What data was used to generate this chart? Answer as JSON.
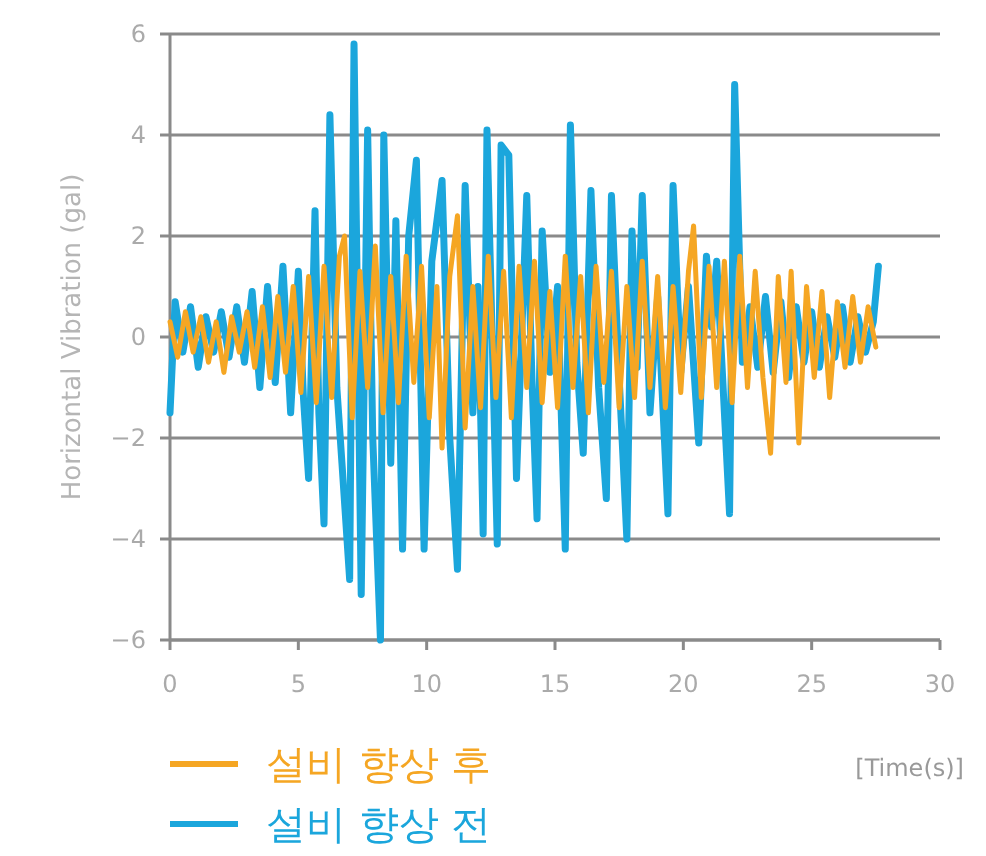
{
  "chart_data": {
    "type": "line",
    "xlabel": "[Time(s)]",
    "ylabel": "Horizontal Vibration (gal)",
    "xlim": [
      0,
      30
    ],
    "xticks": [
      0,
      5,
      10,
      15,
      20,
      25,
      30
    ],
    "ylim": [
      -6,
      6
    ],
    "yticks": [
      -6,
      -4,
      -2,
      0,
      2,
      4,
      6
    ],
    "grid": "y",
    "legend": "bottom left",
    "series": [
      {
        "name": "설비 향상 후",
        "color": "#f5a623",
        "x": [
          0,
          0.3,
          0.6,
          0.9,
          1.2,
          1.5,
          1.8,
          2.1,
          2.4,
          2.7,
          3.0,
          3.3,
          3.6,
          3.9,
          4.2,
          4.5,
          4.8,
          5.1,
          5.4,
          5.7,
          6.0,
          6.3,
          6.6,
          6.8,
          7.1,
          7.4,
          7.7,
          8.0,
          8.3,
          8.6,
          8.9,
          9.2,
          9.5,
          9.8,
          10.1,
          10.4,
          10.6,
          10.9,
          11.2,
          11.5,
          11.8,
          12.1,
          12.4,
          12.7,
          13.0,
          13.3,
          13.6,
          13.9,
          14.2,
          14.5,
          14.8,
          15.1,
          15.4,
          15.7,
          16.0,
          16.3,
          16.6,
          16.9,
          17.2,
          17.5,
          17.8,
          18.1,
          18.4,
          18.7,
          19.0,
          19.3,
          19.6,
          19.9,
          20.2,
          20.4,
          20.7,
          21.0,
          21.3,
          21.6,
          21.9,
          22.2,
          22.5,
          22.8,
          23.1,
          23.4,
          23.7,
          24.0,
          24.2,
          24.5,
          24.8,
          25.1,
          25.4,
          25.7,
          26.0,
          26.3,
          26.6,
          26.9,
          27.2,
          27.5
        ],
        "values": [
          0.3,
          -0.4,
          0.5,
          -0.3,
          0.4,
          -0.5,
          0.3,
          -0.7,
          0.4,
          -0.3,
          0.5,
          -0.6,
          0.6,
          -0.8,
          0.8,
          -0.7,
          1.0,
          -1.1,
          1.2,
          -1.3,
          1.4,
          -1.2,
          1.6,
          2.0,
          -1.6,
          1.3,
          -1.0,
          1.8,
          -1.5,
          1.2,
          -1.3,
          1.6,
          -0.9,
          1.4,
          -1.6,
          1.0,
          -2.2,
          1.2,
          2.4,
          -1.8,
          1.0,
          -1.4,
          1.6,
          -1.2,
          1.3,
          -1.6,
          1.4,
          -1.0,
          1.5,
          -1.3,
          0.9,
          -1.4,
          1.6,
          -1.0,
          1.2,
          -1.5,
          1.4,
          -0.9,
          1.3,
          -1.4,
          1.0,
          -1.2,
          1.5,
          -1.0,
          1.2,
          -1.4,
          1.0,
          -1.1,
          1.3,
          2.2,
          -1.2,
          1.4,
          -1.0,
          1.5,
          -1.3,
          1.6,
          -1.0,
          1.3,
          -0.8,
          -2.3,
          1.2,
          -0.9,
          1.3,
          -2.1,
          1.0,
          -0.8,
          0.9,
          -1.2,
          0.7,
          -0.6,
          0.8,
          -0.5,
          0.6,
          -0.2
        ]
      },
      {
        "name": "설비 향상 전",
        "color": "#1ba6dc",
        "x": [
          0,
          0.2,
          0.5,
          0.8,
          1.1,
          1.4,
          1.7,
          2.0,
          2.3,
          2.6,
          2.9,
          3.2,
          3.5,
          3.8,
          4.1,
          4.4,
          4.7,
          5.0,
          5.2,
          5.4,
          5.65,
          5.8,
          6.0,
          6.23,
          6.5,
          6.7,
          7.0,
          7.17,
          7.45,
          7.7,
          7.9,
          8.2,
          8.33,
          8.6,
          8.8,
          9.06,
          9.3,
          9.6,
          9.9,
          10.2,
          10.6,
          10.9,
          11.2,
          11.5,
          11.8,
          12.0,
          12.2,
          12.35,
          12.6,
          12.75,
          12.9,
          13.2,
          13.5,
          13.9,
          14.1,
          14.3,
          14.5,
          14.8,
          15.1,
          15.4,
          15.6,
          15.85,
          16.1,
          16.4,
          16.7,
          17.0,
          17.2,
          17.5,
          17.8,
          18.0,
          18.2,
          18.4,
          18.7,
          19.0,
          19.4,
          19.6,
          19.9,
          20.2,
          20.6,
          20.9,
          21.1,
          21.3,
          21.5,
          21.8,
          22.0,
          22.3,
          22.6,
          22.9,
          23.2,
          23.5,
          23.8,
          24.1,
          24.4,
          24.7,
          25.0,
          25.3,
          25.6,
          25.9,
          26.2,
          26.5,
          26.8,
          27.1,
          27.4,
          27.6
        ],
        "values": [
          -1.5,
          0.7,
          -0.3,
          0.6,
          -0.6,
          0.4,
          -0.3,
          0.5,
          -0.4,
          0.6,
          -0.5,
          0.9,
          -1.0,
          1.0,
          -0.9,
          1.4,
          -1.5,
          1.3,
          -1.2,
          -2.8,
          2.5,
          -1.5,
          -3.7,
          4.4,
          -1.0,
          -2.5,
          -4.8,
          5.8,
          -5.1,
          4.1,
          -2.0,
          -6.0,
          4.0,
          -2.5,
          2.3,
          -4.2,
          2.0,
          3.5,
          -4.2,
          1.5,
          3.1,
          -2.0,
          -4.6,
          3.0,
          -1.5,
          1.0,
          -3.9,
          4.1,
          -1.0,
          -4.1,
          3.8,
          3.6,
          -2.8,
          2.8,
          -0.8,
          -3.6,
          2.1,
          -0.7,
          1.0,
          -4.2,
          4.2,
          -0.5,
          -2.3,
          2.9,
          -1.0,
          -3.2,
          2.8,
          -0.8,
          -4.0,
          2.1,
          -0.6,
          2.8,
          -1.5,
          0.8,
          -3.5,
          3.0,
          -0.7,
          1.0,
          -2.1,
          1.6,
          0.2,
          1.5,
          -0.5,
          -3.5,
          5.0,
          -0.5,
          0.6,
          -0.6,
          0.8,
          -0.7,
          0.7,
          -0.8,
          0.6,
          -0.5,
          0.5,
          -0.6,
          0.4,
          -0.4,
          0.6,
          -0.5,
          0.4,
          -0.3,
          0.3,
          1.4
        ]
      }
    ]
  }
}
